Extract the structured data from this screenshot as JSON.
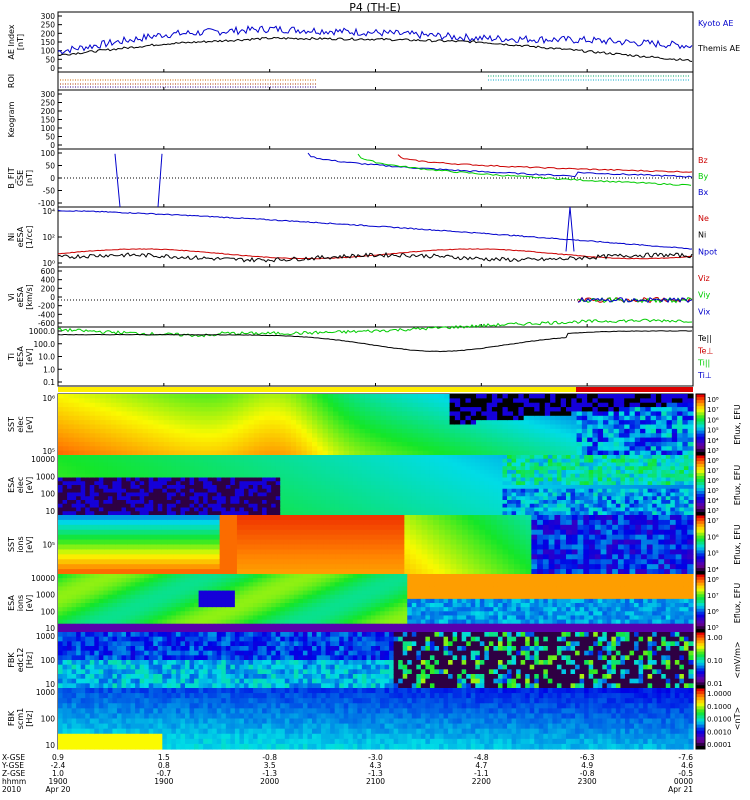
{
  "title": "P4 (TH-E)",
  "colors": {
    "kyoto": "#0000cc",
    "themis": "#000000",
    "bx": "#0000cc",
    "by": "#00cc00",
    "bz": "#cc0000",
    "ne": "#cc0000",
    "ni": "#0000cc",
    "npot": "#000000",
    "bar_yellow": "#ffee00",
    "bar_red": "#dd0000"
  },
  "panels": [
    {
      "key": "ae",
      "ylabel": [
        "AE Index",
        "[nT]"
      ],
      "ticks": [
        "300",
        "250",
        "200",
        "150",
        "100",
        "50",
        "0"
      ],
      "legend": [
        {
          "text": "Kyoto AE",
          "color": "#0000cc"
        },
        {
          "text": "Themis AE",
          "color": "#000000"
        }
      ]
    },
    {
      "key": "roi",
      "ylabel": [
        "ROI"
      ],
      "ticks": [],
      "legend": []
    },
    {
      "key": "keogram",
      "ylabel": [
        "Keogram"
      ],
      "ticks": [
        "300",
        "250",
        "200",
        "150",
        "100",
        "50",
        "0"
      ],
      "legend": []
    },
    {
      "key": "bfit",
      "ylabel": [
        "B_FIT",
        "GSE",
        "[nT]"
      ],
      "ticks": [
        "100",
        "50",
        "0",
        "-50",
        "-100"
      ],
      "legend": [
        {
          "text": "Bz",
          "color": "#cc0000"
        },
        {
          "text": "By",
          "color": "#00cc00"
        },
        {
          "text": "Bx",
          "color": "#0000cc"
        }
      ]
    },
    {
      "key": "ni",
      "ylabel": [
        "Ni",
        "eESA",
        "[1/cc]"
      ],
      "ticks": [
        "10⁴",
        "10²",
        "10⁰"
      ],
      "legend": [
        {
          "text": "Ne",
          "color": "#cc0000"
        },
        {
          "text": "Ni",
          "color": "#000000"
        },
        {
          "text": "Npot",
          "color": "#0000cc"
        }
      ]
    },
    {
      "key": "vi",
      "ylabel": [
        "Vi",
        "eESA",
        "[km/s]"
      ],
      "ticks": [
        "600",
        "400",
        "200",
        "0",
        "-200",
        "-400",
        "-600"
      ],
      "legend": [
        {
          "text": "Viz",
          "color": "#cc0000"
        },
        {
          "text": "Viy",
          "color": "#00cc00"
        },
        {
          "text": "Vix",
          "color": "#0000cc"
        }
      ]
    },
    {
      "key": "ti",
      "ylabel": [
        "Ti",
        "eESA",
        "[eV]"
      ],
      "ticks": [
        "1000.0",
        "100.0",
        "10.0",
        "1.0",
        "0.1"
      ],
      "legend": [
        {
          "text": "Te||",
          "color": "#000000"
        },
        {
          "text": "Te⊥",
          "color": "#cc0000"
        },
        {
          "text": "Ti||",
          "color": "#00cc00"
        },
        {
          "text": "Ti⊥",
          "color": "#0000cc"
        }
      ]
    },
    {
      "key": "sst_e",
      "ylabel": [
        "SST",
        "elec",
        "[eV]"
      ],
      "ticks": [
        "10⁶",
        "10⁵"
      ],
      "legend": []
    },
    {
      "key": "esa_e",
      "ylabel": [
        "ESA",
        "elec",
        "[eV]"
      ],
      "ticks": [
        "10000",
        "1000",
        "100",
        "10"
      ],
      "legend": []
    },
    {
      "key": "sst_i",
      "ylabel": [
        "SST",
        "ions",
        "[eV]"
      ],
      "ticks": [
        "10⁵"
      ],
      "legend": []
    },
    {
      "key": "esa_i",
      "ylabel": [
        "ESA",
        "ions",
        "[eV]"
      ],
      "ticks": [
        "10000",
        "1000",
        "100",
        "10"
      ],
      "legend": []
    },
    {
      "key": "fbk_e",
      "ylabel": [
        "FBK",
        "edc12",
        "[Hz]"
      ],
      "ticks": [
        "1000",
        "100",
        "10"
      ],
      "legend": []
    },
    {
      "key": "fbk_b",
      "ylabel": [
        "FBK",
        "scm1",
        "[Hz]"
      ],
      "ticks": [
        "1000",
        "100",
        "10"
      ],
      "legend": []
    }
  ],
  "colorbars": [
    {
      "label": "Eflux, EFU",
      "ticks": [
        "10⁸",
        "10⁷",
        "10⁶",
        "10⁵",
        "10⁴",
        "10³"
      ]
    },
    {
      "label": "Eflux, EFU",
      "ticks": [
        "10⁸",
        "10⁷",
        "10⁶",
        "10⁵",
        "10⁴",
        "10³"
      ]
    },
    {
      "label": "Eflux, EFU",
      "ticks": [
        "10⁷",
        "10⁶",
        "10⁵",
        "10⁴"
      ]
    },
    {
      "label": "Eflux, EFU",
      "ticks": [
        "10⁸",
        "10⁷",
        "10⁶",
        "10⁵"
      ]
    },
    {
      "label": "<mV/m>",
      "ticks": [
        "1.00",
        "0.10",
        "0.01"
      ]
    },
    {
      "label": "<nT>",
      "ticks": [
        "1.0000",
        "0.1000",
        "0.0100",
        "0.0010",
        "0.0001"
      ]
    }
  ],
  "xaxis": {
    "row_labels": [
      "X-GSE",
      "Y-GSE",
      "Z-GSE",
      "hhmm",
      "2010"
    ],
    "columns": [
      {
        "vals": [
          "0.9",
          "-2.4",
          "1.0",
          "1900",
          "Apr 20"
        ]
      },
      {
        "vals": [
          "1.5",
          "0.8",
          "-0.7",
          "1900",
          ""
        ]
      },
      {
        "vals": [
          "-0.8",
          "3.5",
          "-1.3",
          "2000",
          ""
        ]
      },
      {
        "vals": [
          "-3.0",
          "4.3",
          "-1.3",
          "2100",
          ""
        ]
      },
      {
        "vals": [
          "-4.8",
          "4.7",
          "-1.1",
          "2200",
          ""
        ]
      },
      {
        "vals": [
          "-6.3",
          "4.9",
          "-0.8",
          "2300",
          ""
        ]
      },
      {
        "vals": [
          "-7.6",
          "4.6",
          "-0.5",
          "0000",
          "Apr 21"
        ]
      }
    ]
  },
  "chart_data": {
    "type": "line",
    "title": "P4 (TH-E)",
    "x": [
      "1900",
      "1900",
      "2000",
      "2100",
      "2200",
      "2300",
      "0000"
    ],
    "series": [
      {
        "name": "Kyoto AE",
        "values": [
          110,
          200,
          230,
          210,
          180,
          170,
          140
        ]
      },
      {
        "name": "Themis AE",
        "values": [
          90,
          150,
          180,
          175,
          160,
          110,
          60
        ]
      },
      {
        "name": "Bz",
        "values": [
          null,
          null,
          100,
          90,
          50,
          40,
          40
        ]
      },
      {
        "name": "By",
        "values": [
          null,
          null,
          100,
          40,
          0,
          -20,
          -30
        ]
      },
      {
        "name": "Bx",
        "values": [
          -120,
          100,
          100,
          60,
          40,
          35,
          35
        ]
      }
    ]
  }
}
